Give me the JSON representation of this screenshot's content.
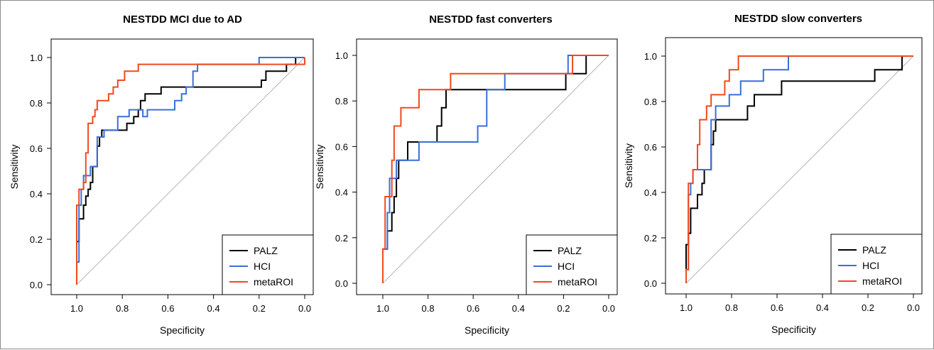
{
  "chart_data": [
    {
      "type": "line",
      "title": "NESTDD MCI due to AD",
      "xlabel": "Specificity",
      "ylabel": "Sensitivity",
      "xlim": [
        1.0,
        0.0
      ],
      "ylim": [
        0.0,
        1.0
      ],
      "x_reversed": true,
      "xticks": [
        "1.0",
        "0.8",
        "0.6",
        "0.4",
        "0.2",
        "0.0"
      ],
      "yticks": [
        "0.0",
        "0.2",
        "0.4",
        "0.6",
        "0.8",
        "1.0"
      ],
      "legend_position": "bottom-right",
      "reference_line": "diagonal",
      "series": [
        {
          "name": "PALZ",
          "color": "#000000",
          "points": [
            [
              1.0,
              0.0
            ],
            [
              1.0,
              0.1
            ],
            [
              1.0,
              0.19
            ],
            [
              0.99,
              0.19
            ],
            [
              0.99,
              0.29
            ],
            [
              0.97,
              0.29
            ],
            [
              0.97,
              0.35
            ],
            [
              0.96,
              0.35
            ],
            [
              0.96,
              0.39
            ],
            [
              0.95,
              0.39
            ],
            [
              0.95,
              0.42
            ],
            [
              0.94,
              0.42
            ],
            [
              0.94,
              0.45
            ],
            [
              0.93,
              0.45
            ],
            [
              0.93,
              0.52
            ],
            [
              0.91,
              0.52
            ],
            [
              0.91,
              0.61
            ],
            [
              0.9,
              0.61
            ],
            [
              0.9,
              0.65
            ],
            [
              0.89,
              0.65
            ],
            [
              0.89,
              0.68
            ],
            [
              0.78,
              0.68
            ],
            [
              0.78,
              0.71
            ],
            [
              0.75,
              0.71
            ],
            [
              0.75,
              0.74
            ],
            [
              0.73,
              0.74
            ],
            [
              0.73,
              0.77
            ],
            [
              0.72,
              0.77
            ],
            [
              0.72,
              0.81
            ],
            [
              0.7,
              0.81
            ],
            [
              0.7,
              0.84
            ],
            [
              0.63,
              0.84
            ],
            [
              0.63,
              0.87
            ],
            [
              0.19,
              0.87
            ],
            [
              0.19,
              0.9
            ],
            [
              0.17,
              0.9
            ],
            [
              0.17,
              0.94
            ],
            [
              0.08,
              0.94
            ],
            [
              0.08,
              0.97
            ],
            [
              0.04,
              0.97
            ],
            [
              0.04,
              1.0
            ],
            [
              0.0,
              1.0
            ]
          ]
        },
        {
          "name": "HCI",
          "color": "#3a6fd8",
          "points": [
            [
              1.0,
              0.0
            ],
            [
              1.0,
              0.1
            ],
            [
              0.99,
              0.1
            ],
            [
              0.99,
              0.35
            ],
            [
              0.98,
              0.35
            ],
            [
              0.98,
              0.42
            ],
            [
              0.97,
              0.42
            ],
            [
              0.97,
              0.48
            ],
            [
              0.94,
              0.48
            ],
            [
              0.94,
              0.52
            ],
            [
              0.91,
              0.52
            ],
            [
              0.91,
              0.65
            ],
            [
              0.88,
              0.65
            ],
            [
              0.88,
              0.68
            ],
            [
              0.82,
              0.68
            ],
            [
              0.82,
              0.74
            ],
            [
              0.77,
              0.74
            ],
            [
              0.77,
              0.77
            ],
            [
              0.71,
              0.77
            ],
            [
              0.71,
              0.74
            ],
            [
              0.69,
              0.74
            ],
            [
              0.69,
              0.77
            ],
            [
              0.57,
              0.77
            ],
            [
              0.57,
              0.81
            ],
            [
              0.54,
              0.81
            ],
            [
              0.54,
              0.84
            ],
            [
              0.52,
              0.84
            ],
            [
              0.52,
              0.87
            ],
            [
              0.49,
              0.87
            ],
            [
              0.49,
              0.94
            ],
            [
              0.47,
              0.94
            ],
            [
              0.47,
              0.97
            ],
            [
              0.2,
              0.97
            ],
            [
              0.2,
              1.0
            ],
            [
              0.0,
              1.0
            ]
          ]
        },
        {
          "name": "metaROI",
          "color": "#f04a1e",
          "points": [
            [
              1.0,
              0.0
            ],
            [
              1.0,
              0.35
            ],
            [
              0.99,
              0.35
            ],
            [
              0.99,
              0.42
            ],
            [
              0.97,
              0.42
            ],
            [
              0.97,
              0.45
            ],
            [
              0.96,
              0.45
            ],
            [
              0.96,
              0.58
            ],
            [
              0.95,
              0.58
            ],
            [
              0.95,
              0.71
            ],
            [
              0.93,
              0.71
            ],
            [
              0.93,
              0.74
            ],
            [
              0.92,
              0.74
            ],
            [
              0.92,
              0.77
            ],
            [
              0.91,
              0.77
            ],
            [
              0.91,
              0.81
            ],
            [
              0.86,
              0.81
            ],
            [
              0.86,
              0.84
            ],
            [
              0.84,
              0.84
            ],
            [
              0.84,
              0.87
            ],
            [
              0.82,
              0.87
            ],
            [
              0.82,
              0.9
            ],
            [
              0.79,
              0.9
            ],
            [
              0.79,
              0.94
            ],
            [
              0.73,
              0.94
            ],
            [
              0.73,
              0.97
            ],
            [
              0.0,
              0.97
            ],
            [
              0.0,
              1.0
            ]
          ]
        }
      ]
    },
    {
      "type": "line",
      "title": "NESTDD fast converters",
      "xlabel": "Specificity",
      "ylabel": "Sensitivity",
      "xlim": [
        1.0,
        0.0
      ],
      "ylim": [
        0.0,
        1.0
      ],
      "x_reversed": true,
      "xticks": [
        "1.0",
        "0.8",
        "0.6",
        "0.4",
        "0.2",
        "0.0"
      ],
      "yticks": [
        "0.0",
        "0.2",
        "0.4",
        "0.6",
        "0.8",
        "1.0"
      ],
      "legend_position": "bottom-right",
      "reference_line": "diagonal",
      "series": [
        {
          "name": "PALZ",
          "color": "#000000",
          "points": [
            [
              1.0,
              0.0
            ],
            [
              1.0,
              0.15
            ],
            [
              0.98,
              0.15
            ],
            [
              0.98,
              0.23
            ],
            [
              0.96,
              0.23
            ],
            [
              0.96,
              0.31
            ],
            [
              0.95,
              0.31
            ],
            [
              0.95,
              0.38
            ],
            [
              0.94,
              0.38
            ],
            [
              0.94,
              0.46
            ],
            [
              0.93,
              0.46
            ],
            [
              0.93,
              0.54
            ],
            [
              0.89,
              0.54
            ],
            [
              0.89,
              0.62
            ],
            [
              0.76,
              0.62
            ],
            [
              0.76,
              0.69
            ],
            [
              0.74,
              0.69
            ],
            [
              0.74,
              0.77
            ],
            [
              0.72,
              0.77
            ],
            [
              0.72,
              0.85
            ],
            [
              0.19,
              0.85
            ],
            [
              0.19,
              0.92
            ],
            [
              0.1,
              0.92
            ],
            [
              0.1,
              1.0
            ],
            [
              0.0,
              1.0
            ]
          ]
        },
        {
          "name": "HCI",
          "color": "#3a6fd8",
          "points": [
            [
              1.0,
              0.0
            ],
            [
              1.0,
              0.15
            ],
            [
              0.98,
              0.15
            ],
            [
              0.98,
              0.31
            ],
            [
              0.97,
              0.31
            ],
            [
              0.97,
              0.46
            ],
            [
              0.94,
              0.46
            ],
            [
              0.94,
              0.54
            ],
            [
              0.84,
              0.54
            ],
            [
              0.84,
              0.62
            ],
            [
              0.58,
              0.62
            ],
            [
              0.58,
              0.69
            ],
            [
              0.54,
              0.69
            ],
            [
              0.54,
              0.85
            ],
            [
              0.46,
              0.85
            ],
            [
              0.46,
              0.92
            ],
            [
              0.18,
              0.92
            ],
            [
              0.18,
              1.0
            ],
            [
              0.0,
              1.0
            ]
          ]
        },
        {
          "name": "metaROI",
          "color": "#f04a1e",
          "points": [
            [
              1.0,
              0.0
            ],
            [
              1.0,
              0.15
            ],
            [
              0.99,
              0.15
            ],
            [
              0.99,
              0.38
            ],
            [
              0.96,
              0.38
            ],
            [
              0.96,
              0.54
            ],
            [
              0.95,
              0.54
            ],
            [
              0.95,
              0.69
            ],
            [
              0.92,
              0.69
            ],
            [
              0.92,
              0.77
            ],
            [
              0.84,
              0.77
            ],
            [
              0.84,
              0.85
            ],
            [
              0.7,
              0.85
            ],
            [
              0.7,
              0.92
            ],
            [
              0.16,
              0.92
            ],
            [
              0.16,
              1.0
            ],
            [
              0.0,
              1.0
            ]
          ]
        }
      ]
    },
    {
      "type": "line",
      "title": "NESTDD slow converters",
      "xlabel": "Specificity",
      "ylabel": "Sensitivity",
      "xlim": [
        1.0,
        0.0
      ],
      "ylim": [
        0.0,
        1.0
      ],
      "x_reversed": true,
      "xticks": [
        "1.0",
        "0.8",
        "0.6",
        "0.4",
        "0.2",
        "0.0"
      ],
      "yticks": [
        "0.0",
        "0.2",
        "0.4",
        "0.6",
        "0.8",
        "1.0"
      ],
      "legend_position": "bottom-right",
      "reference_line": "diagonal",
      "series": [
        {
          "name": "PALZ",
          "color": "#000000",
          "points": [
            [
              1.0,
              0.0
            ],
            [
              1.0,
              0.17
            ],
            [
              0.99,
              0.17
            ],
            [
              0.99,
              0.22
            ],
            [
              0.98,
              0.22
            ],
            [
              0.98,
              0.33
            ],
            [
              0.95,
              0.33
            ],
            [
              0.95,
              0.39
            ],
            [
              0.93,
              0.39
            ],
            [
              0.93,
              0.44
            ],
            [
              0.92,
              0.44
            ],
            [
              0.92,
              0.5
            ],
            [
              0.89,
              0.5
            ],
            [
              0.89,
              0.61
            ],
            [
              0.88,
              0.61
            ],
            [
              0.88,
              0.67
            ],
            [
              0.87,
              0.67
            ],
            [
              0.87,
              0.72
            ],
            [
              0.73,
              0.72
            ],
            [
              0.73,
              0.78
            ],
            [
              0.7,
              0.78
            ],
            [
              0.7,
              0.83
            ],
            [
              0.58,
              0.83
            ],
            [
              0.58,
              0.89
            ],
            [
              0.17,
              0.89
            ],
            [
              0.17,
              0.94
            ],
            [
              0.05,
              0.94
            ],
            [
              0.05,
              1.0
            ],
            [
              0.0,
              1.0
            ]
          ]
        },
        {
          "name": "HCI",
          "color": "#3a6fd8",
          "points": [
            [
              1.0,
              0.0
            ],
            [
              1.0,
              0.06
            ],
            [
              0.99,
              0.06
            ],
            [
              0.99,
              0.39
            ],
            [
              0.98,
              0.39
            ],
            [
              0.98,
              0.44
            ],
            [
              0.97,
              0.44
            ],
            [
              0.97,
              0.5
            ],
            [
              0.89,
              0.5
            ],
            [
              0.89,
              0.72
            ],
            [
              0.87,
              0.72
            ],
            [
              0.87,
              0.78
            ],
            [
              0.81,
              0.78
            ],
            [
              0.81,
              0.83
            ],
            [
              0.76,
              0.83
            ],
            [
              0.76,
              0.89
            ],
            [
              0.66,
              0.89
            ],
            [
              0.66,
              0.94
            ],
            [
              0.55,
              0.94
            ],
            [
              0.55,
              1.0
            ],
            [
              0.0,
              1.0
            ]
          ]
        },
        {
          "name": "metaROI",
          "color": "#f04a1e",
          "points": [
            [
              1.0,
              0.0
            ],
            [
              1.0,
              0.06
            ],
            [
              0.99,
              0.06
            ],
            [
              0.99,
              0.44
            ],
            [
              0.97,
              0.44
            ],
            [
              0.97,
              0.5
            ],
            [
              0.95,
              0.5
            ],
            [
              0.95,
              0.61
            ],
            [
              0.94,
              0.61
            ],
            [
              0.94,
              0.72
            ],
            [
              0.91,
              0.72
            ],
            [
              0.91,
              0.78
            ],
            [
              0.89,
              0.78
            ],
            [
              0.89,
              0.83
            ],
            [
              0.83,
              0.83
            ],
            [
              0.83,
              0.89
            ],
            [
              0.81,
              0.89
            ],
            [
              0.81,
              0.94
            ],
            [
              0.77,
              0.94
            ],
            [
              0.77,
              1.0
            ],
            [
              0.0,
              1.0
            ]
          ]
        }
      ]
    }
  ]
}
